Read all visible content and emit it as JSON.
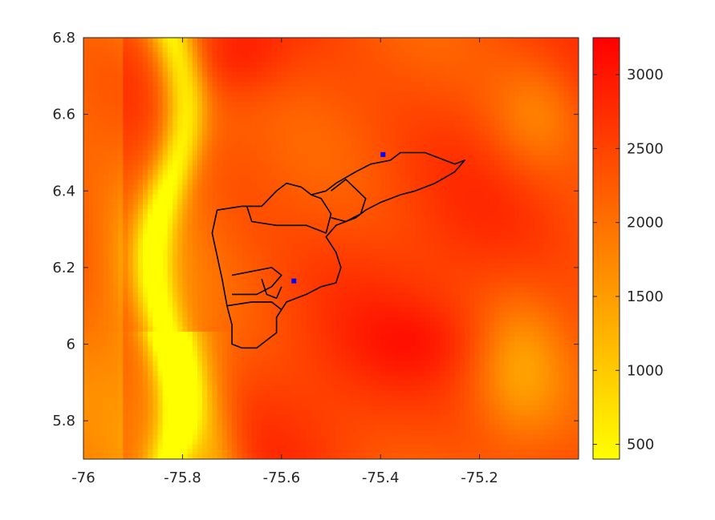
{
  "chart_data": {
    "type": "heatmap",
    "title": "",
    "xlabel": "",
    "ylabel": "",
    "xlim": [
      -76.0,
      -75.0
    ],
    "ylim": [
      5.7,
      6.8
    ],
    "x_ticks": [
      -76,
      -75.8,
      -75.6,
      -75.4,
      -75.2
    ],
    "x_tick_labels": [
      "-76",
      "-75.8",
      "-75.6",
      "-75.4",
      "-75.2"
    ],
    "y_ticks": [
      5.8,
      6.0,
      6.2,
      6.4,
      6.6,
      6.8
    ],
    "y_tick_labels": [
      "5.8",
      "6",
      "6.2",
      "6.4",
      "6.6",
      "6.8"
    ],
    "colorbar": {
      "range": [
        400,
        3250
      ],
      "ticks": [
        500,
        1000,
        1500,
        2000,
        2500,
        3000
      ],
      "tick_labels": [
        "500",
        "1000",
        "1500",
        "2000",
        "2500",
        "3000"
      ],
      "colormap": "autumn (reversed: yellow low, red high)",
      "color_low": "#ffff00",
      "color_high": "#ff0000"
    },
    "points": [
      {
        "x": -75.395,
        "y": 6.495,
        "color": "#0000ff"
      },
      {
        "x": -75.575,
        "y": 6.165,
        "color": "#0000ff"
      }
    ],
    "outline_color": "#000000",
    "grid": false
  }
}
